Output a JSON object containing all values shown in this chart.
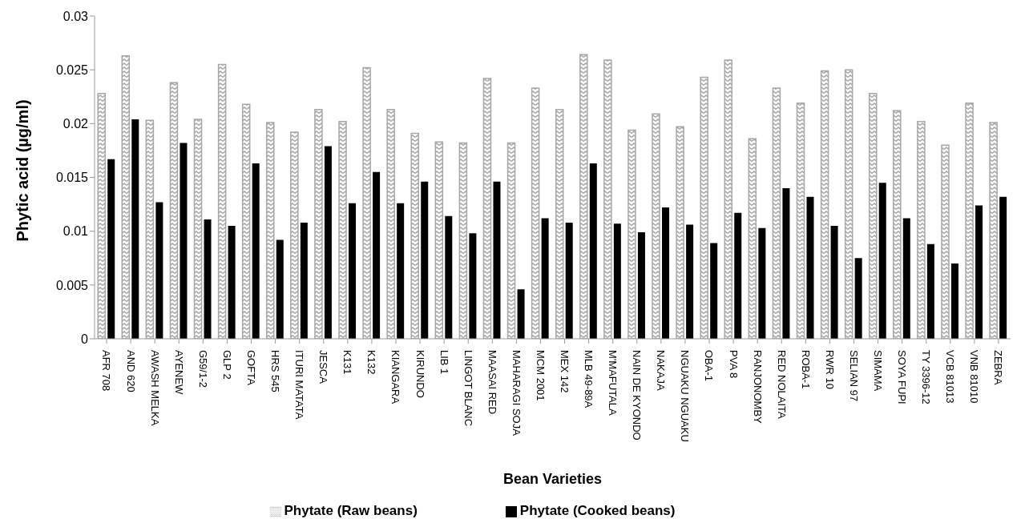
{
  "chart_data": {
    "type": "bar",
    "xlabel": "Bean Varieties",
    "ylabel": "Phytic acid (µg/ml)",
    "categories": [
      "AFR 708",
      "AND 620",
      "AWASH MELKA",
      "AYENEW",
      "G59/1-2",
      "GLP 2",
      "GOFTA",
      "HRS 545",
      "ITURI MATATA",
      "JESCA",
      "K131",
      "K132",
      "KIANGARA",
      "KIRUNDO",
      "LIB 1",
      "LINGOT BLANC",
      "MAASAI RED",
      "MAHARAGI SOJA",
      "MCM 2001",
      "MEX 142",
      "MLB 49-89A",
      "M'MAFUTALA",
      "NAIN DE KYONDO",
      "NAKAJA",
      "NGUAKU NGUAKU",
      "OBA-1",
      "PVA 8",
      "RANJONOMBY",
      "RED NOLAITA",
      "ROBA-1",
      "RWR 10",
      "SELIAN 97",
      "SIMAMA",
      "SOYA FUPI",
      "TY 3396-12",
      "VCB 81013",
      "VNB 81010",
      "ZEBRA"
    ],
    "series": [
      {
        "name": "Phytate (Raw beans)",
        "color": "#a6a6a6",
        "values": [
          0.0228,
          0.0263,
          0.0203,
          0.0238,
          0.0204,
          0.0255,
          0.0218,
          0.0201,
          0.0192,
          0.0213,
          0.0202,
          0.0252,
          0.0213,
          0.0191,
          0.0183,
          0.0182,
          0.0242,
          0.0182,
          0.0233,
          0.0213,
          0.0264,
          0.0259,
          0.0194,
          0.0209,
          0.0197,
          0.0243,
          0.0259,
          0.0186,
          0.0233,
          0.0219,
          0.0249,
          0.025,
          0.0228,
          0.0212,
          0.0202,
          0.018,
          0.0219,
          0.0201
        ]
      },
      {
        "name": "Phytate (Cooked beans)",
        "color": "#000000",
        "values": [
          0.0167,
          0.0204,
          0.0127,
          0.0182,
          0.0111,
          0.0105,
          0.0163,
          0.0092,
          0.0108,
          0.0179,
          0.0126,
          0.0155,
          0.0126,
          0.0146,
          0.0114,
          0.0098,
          0.0146,
          0.0046,
          0.0112,
          0.0108,
          0.0163,
          0.0107,
          0.0099,
          0.0122,
          0.0106,
          0.0089,
          0.0117,
          0.0103,
          0.014,
          0.0132,
          0.0105,
          0.0075,
          0.0145,
          0.0112,
          0.0088,
          0.007,
          0.0124,
          0.0132
        ]
      }
    ],
    "ylim": [
      0,
      0.03
    ],
    "yticks": [
      0,
      0.005,
      0.01,
      0.015,
      0.02,
      0.025,
      0.03
    ],
    "legend": "bottom"
  }
}
